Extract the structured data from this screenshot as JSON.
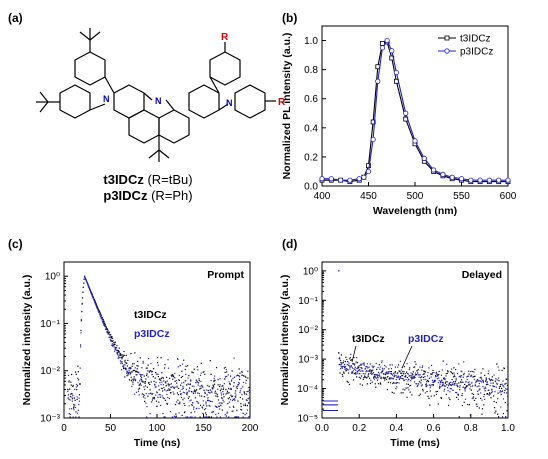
{
  "panels": {
    "a": {
      "label": "(a)",
      "molecule_1": {
        "name": "t3IDCz",
        "suffix": " (R=tBu)"
      },
      "molecule_2": {
        "name": "p3IDCz",
        "suffix": " (R=Ph)"
      },
      "atom_labels": {
        "nitrogen": "N",
        "substituent": "R"
      }
    },
    "b": {
      "label": "(b)"
    },
    "c": {
      "label": "(c)"
    },
    "d": {
      "label": "(d)"
    }
  },
  "chart_data": [
    {
      "id": "b",
      "type": "line",
      "xlabel": "Wavelength (nm)",
      "ylabel": "Normalized PL intensity (a.u.)",
      "xlim": [
        400,
        600
      ],
      "ylim": [
        0,
        1.1
      ],
      "xticks": [
        400,
        450,
        500,
        550,
        600
      ],
      "yticks": [
        0.0,
        0.2,
        0.4,
        0.6,
        0.8,
        1.0
      ],
      "tick_labels_x": [
        "400",
        "450",
        "500",
        "550",
        "600"
      ],
      "tick_labels_y": [
        "0.0",
        "0.2",
        "0.4",
        "0.6",
        "0.8",
        "1.0"
      ],
      "legend_position": "top-right",
      "series": [
        {
          "name": "t3IDCz",
          "color": "#000000",
          "marker": "square",
          "x": [
            400,
            410,
            420,
            430,
            440,
            445,
            450,
            455,
            460,
            465,
            470,
            475,
            480,
            490,
            500,
            510,
            520,
            530,
            540,
            550,
            560,
            570,
            580,
            590,
            600
          ],
          "y": [
            0.04,
            0.04,
            0.04,
            0.03,
            0.04,
            0.06,
            0.14,
            0.44,
            0.82,
            0.98,
            0.99,
            0.88,
            0.72,
            0.46,
            0.29,
            0.17,
            0.1,
            0.07,
            0.05,
            0.04,
            0.03,
            0.03,
            0.03,
            0.03,
            0.03
          ]
        },
        {
          "name": "p3IDCz",
          "color": "#2222cc",
          "marker": "circle",
          "x": [
            400,
            410,
            420,
            430,
            440,
            445,
            450,
            455,
            460,
            465,
            470,
            475,
            480,
            490,
            500,
            510,
            520,
            530,
            540,
            550,
            560,
            570,
            580,
            590,
            600
          ],
          "y": [
            0.05,
            0.05,
            0.04,
            0.04,
            0.05,
            0.06,
            0.1,
            0.32,
            0.72,
            0.95,
            1.0,
            0.93,
            0.78,
            0.5,
            0.31,
            0.19,
            0.11,
            0.08,
            0.06,
            0.05,
            0.04,
            0.04,
            0.04,
            0.04,
            0.04
          ]
        }
      ]
    },
    {
      "id": "c",
      "type": "scatter",
      "title": "Prompt",
      "xlabel": "Time (ns)",
      "ylabel": "Normalized intensity (a.u.)",
      "xlim": [
        0,
        200
      ],
      "ylim": [
        0.001,
        2
      ],
      "yscale": "log",
      "xticks": [
        0,
        50,
        100,
        150,
        200
      ],
      "tick_labels_x": [
        "0",
        "50",
        "100",
        "150",
        "200"
      ],
      "yticks": [
        0.001,
        0.01,
        0.1,
        1
      ],
      "tick_labels_y": [
        "10⁻³",
        "10⁻²",
        "10⁻¹",
        "10⁰"
      ],
      "annotations": [
        {
          "text": "t3IDCz",
          "color": "#000000"
        },
        {
          "text": "p3IDCz",
          "color": "#2222cc"
        }
      ],
      "series": [
        {
          "name": "t3IDCz",
          "color": "#000000",
          "curve": {
            "baseline": 0.0035,
            "onset": 17,
            "peak_t": 22,
            "tau": 9.0,
            "late_tau": 28,
            "late_weight": 0.02,
            "noise_decades": 0.28
          }
        },
        {
          "name": "p3IDCz",
          "color": "#2222cc",
          "curve": {
            "baseline": 0.003,
            "onset": 17,
            "peak_t": 22,
            "tau": 8.5,
            "late_tau": 26,
            "late_weight": 0.02,
            "noise_decades": 0.3
          }
        }
      ]
    },
    {
      "id": "d",
      "type": "scatter",
      "title": "Delayed",
      "xlabel": "Time (ms)",
      "ylabel": "Normalized intensity (a.u.)",
      "xlim": [
        0,
        1.0
      ],
      "ylim": [
        1e-05,
        2
      ],
      "yscale": "log",
      "xticks": [
        0.0,
        0.2,
        0.4,
        0.6,
        0.8,
        1.0
      ],
      "tick_labels_x": [
        "0.0",
        "0.2",
        "0.4",
        "0.6",
        "0.8",
        "1.0"
      ],
      "yticks": [
        1e-05,
        0.0001,
        0.001,
        0.01,
        0.1,
        1
      ],
      "tick_labels_y": [
        "10⁻⁵",
        "10⁻⁴",
        "10⁻³",
        "10⁻²",
        "10⁻¹",
        "10⁰"
      ],
      "annotations": [
        {
          "text": "t3IDCz",
          "color": "#000000"
        },
        {
          "text": "p3IDCz",
          "color": "#2222cc"
        }
      ],
      "series": [
        {
          "name": "t3IDCz",
          "color": "#000000",
          "curve": {
            "onset": 0.09,
            "start": 0.0007,
            "end": 7.5e-05,
            "noise_decades": 0.35
          }
        },
        {
          "name": "p3IDCz",
          "color": "#2222cc",
          "curve": {
            "onset": 0.09,
            "start": 0.0009,
            "end": 0.00011,
            "noise_decades": 0.25
          }
        }
      ]
    }
  ]
}
